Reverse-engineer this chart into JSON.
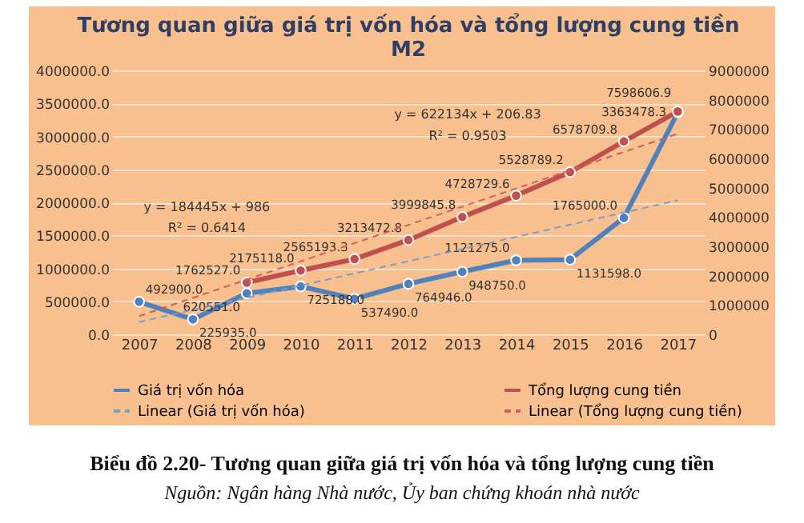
{
  "chart_data": {
    "type": "line",
    "title": "Tương quan giữa giá trị vốn hóa và tổng lượng cung tiền M2",
    "categories": [
      "2007",
      "2008",
      "2009",
      "2010",
      "2011",
      "2012",
      "2013",
      "2014",
      "2015",
      "2016",
      "2017"
    ],
    "series": [
      {
        "name": "Giá trị vốn hóa",
        "color": "#4f81bd",
        "axis": "y",
        "marker": "circle",
        "line_style": "solid",
        "values": [
          492900.0,
          225935.0,
          620551.0,
          725188.0,
          537490.0,
          764946.0,
          948750.0,
          1121275.0,
          1131598.0,
          1765000.0,
          3363478.3
        ],
        "value_labels": [
          "492900.0",
          "225935.0",
          "620551.0",
          "725188.0",
          "537490.0",
          "764946.0",
          "948750.0",
          "1121275.0",
          "1131598.0",
          "1765000.0",
          "3363478.3"
        ]
      },
      {
        "name": "Tổng lượng cung tiền",
        "color": "#c0504d",
        "axis": "y2",
        "marker": "circle",
        "line_style": "solid",
        "values": [
          null,
          null,
          1762527.0,
          2175118.0,
          2565193.3,
          3213472.8,
          3999845.8,
          4728729.6,
          5528789.2,
          6578709.8,
          7598606.9
        ],
        "value_labels": [
          null,
          null,
          "1762527.0",
          "2175118.0",
          "2565193.3",
          "3213472.8",
          "3999845.8",
          "4728729.6",
          "5528789.2",
          "6578709.8",
          "7598606.9"
        ]
      },
      {
        "name": "Linear (Giá trị vốn hóa)",
        "color": "#7f9cc4",
        "axis": "y",
        "marker": "none",
        "line_style": "dashed",
        "values": [
          185000,
          null,
          null,
          null,
          null,
          null,
          null,
          null,
          null,
          null,
          2030000
        ]
      },
      {
        "name": "Linear (Tổng lượng cung tiền)",
        "color": "#d0605d",
        "axis": "y2",
        "marker": "none",
        "line_style": "dashed",
        "values": [
          620000,
          null,
          null,
          null,
          null,
          null,
          null,
          null,
          null,
          null,
          6840000
        ]
      }
    ],
    "ylim": [
      0,
      4000000
    ],
    "yticks": [
      {
        "value": 0,
        "label": "0.0"
      },
      {
        "value": 500000,
        "label": "500000.0"
      },
      {
        "value": 1000000,
        "label": "1000000.0"
      },
      {
        "value": 1500000,
        "label": "1500000.0"
      },
      {
        "value": 2000000,
        "label": "2000000.0"
      },
      {
        "value": 2500000,
        "label": "2500000.0"
      },
      {
        "value": 3000000,
        "label": "3000000.0"
      },
      {
        "value": 3500000,
        "label": "3500000.0"
      },
      {
        "value": 4000000,
        "label": "4000000.0"
      }
    ],
    "y2lim": [
      0,
      9000000
    ],
    "y2ticks": [
      0,
      1000000,
      2000000,
      3000000,
      4000000,
      5000000,
      6000000,
      7000000,
      8000000,
      9000000
    ],
    "grid": "y",
    "legend": "bottom",
    "annotations": [
      "y = 184445x + 986",
      "R² = 0.6414",
      "y = 622134x + 206.83",
      "R² = 0.9503",
      "Biểu đồ 2.20- Tương quan giữa giá trị vốn hóa và tổng lượng cung tiền",
      "Nguồn: Ngân hàng Nhà nước, Ủy ban chứng khoán nhà nước"
    ]
  }
}
